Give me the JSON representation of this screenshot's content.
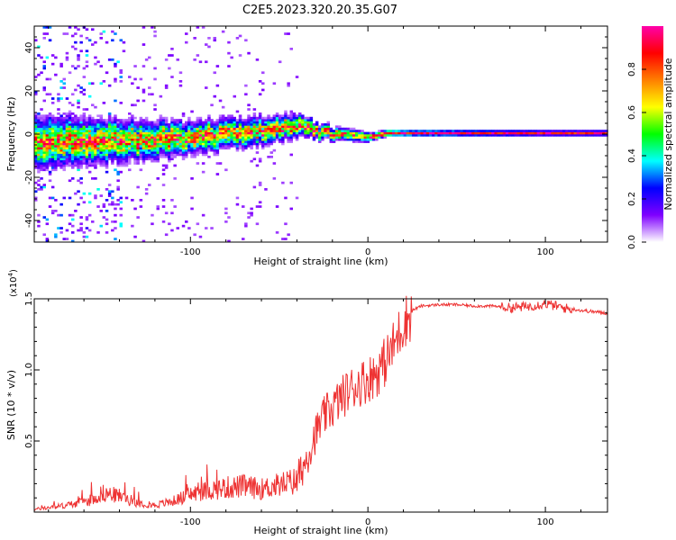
{
  "figure": {
    "title": "C2E5.2023.320.20.35.G07"
  },
  "colors": {
    "background": "#ffffff",
    "snr_line": "#ee3333",
    "axes": "#000000"
  },
  "chart_data": [
    {
      "type": "heatmap",
      "name": "spectrogram",
      "title": "C2E5.2023.320.20.35.G07",
      "xlabel": "Height of straight line (km)",
      "ylabel": "Frequency (Hz)",
      "xlim": [
        -188,
        135
      ],
      "ylim": [
        -50,
        50
      ],
      "x_ticks": [
        -100,
        0,
        100
      ],
      "x_tick_labels": [
        "-100",
        "0",
        "100"
      ],
      "y_ticks": [
        -40,
        -20,
        0,
        20,
        40
      ],
      "y_tick_labels": [
        "-40",
        "-20",
        "0",
        "20",
        "40"
      ],
      "description_points": {
        "ridge_height_km": [
          -188,
          -160,
          -130,
          -100,
          -70,
          -50,
          -40,
          -30,
          -20,
          -10,
          0,
          10,
          20,
          60,
          100,
          135
        ],
        "ridge_frequency_hz": [
          -4,
          -4,
          -3,
          -2,
          0,
          2,
          4,
          1,
          0,
          -1,
          -2,
          0,
          0,
          0,
          0,
          0
        ],
        "ridge_spread_hz": [
          8,
          7,
          6,
          5,
          4.5,
          4,
          3.5,
          2.5,
          2,
          1.8,
          1.6,
          1.4,
          1.2,
          1.1,
          1,
          1
        ]
      },
      "colorbar": {
        "label": "Normalized spectral amplitude",
        "range": [
          0,
          1
        ],
        "ticks": [
          0.0,
          0.2,
          0.4,
          0.6,
          0.8
        ],
        "tick_labels": [
          "0.0",
          "0.2",
          "0.4",
          "0.6",
          "0.8"
        ],
        "colormap": [
          "#ffffff",
          "#7f00ff",
          "#0000ff",
          "#00ffff",
          "#00ff00",
          "#ffff00",
          "#ff7f00",
          "#ff0000",
          "#ff00aa"
        ]
      }
    },
    {
      "type": "line",
      "name": "snr",
      "xlabel": "Height of straight line (km)",
      "ylabel": "SNR (10 * v/v)",
      "y_scale_label": "(x10",
      "y_scale_exponent": "4",
      "y_scale_suffix": ")",
      "xlim": [
        -188,
        135
      ],
      "ylim": [
        0,
        15000
      ],
      "x_ticks": [
        -100,
        0,
        100
      ],
      "x_tick_labels": [
        "-100",
        "0",
        "100"
      ],
      "y_ticks": [
        5000,
        10000,
        15000
      ],
      "y_tick_labels": [
        "0.5",
        "1.0",
        "1.5"
      ],
      "series": [
        {
          "name": "SNR",
          "x": [
            -188,
            -170,
            -155,
            -150,
            -140,
            -130,
            -120,
            -110,
            -100,
            -90,
            -80,
            -70,
            -60,
            -50,
            -40,
            -35,
            -30,
            -25,
            -20,
            -15,
            -10,
            -5,
            0,
            5,
            10,
            15,
            20,
            25,
            30,
            40,
            50,
            60,
            70,
            80,
            90,
            100,
            110,
            120,
            135
          ],
          "y": [
            200,
            500,
            900,
            1400,
            1200,
            700,
            500,
            800,
            1300,
            1600,
            1800,
            1900,
            1700,
            2000,
            2300,
            3800,
            5500,
            6800,
            7500,
            8200,
            8800,
            9200,
            9500,
            10000,
            10800,
            12000,
            13500,
            14200,
            14500,
            14600,
            14600,
            14500,
            14500,
            14400,
            14500,
            14700,
            14400,
            14200,
            14000
          ]
        }
      ]
    }
  ]
}
